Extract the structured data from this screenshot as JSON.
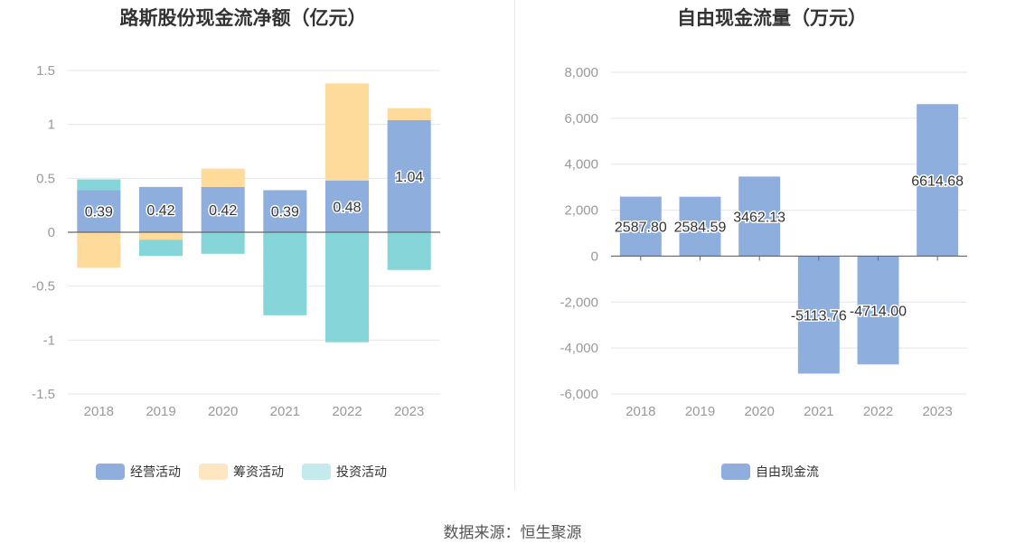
{
  "chart_data": [
    {
      "type": "bar",
      "stacked": true,
      "title": "路斯股份现金流净额（亿元）",
      "categories": [
        "2018",
        "2019",
        "2020",
        "2021",
        "2022",
        "2023"
      ],
      "ylim": [
        -1.5,
        1.5
      ],
      "yticks": [
        1.5,
        1,
        0.5,
        0,
        -0.5,
        -1,
        -1.5
      ],
      "ytick_labels": [
        "1.5",
        "1",
        "0.5",
        "0",
        "-0.5",
        "-1",
        "-1.5"
      ],
      "grid": true,
      "legend": "bottom",
      "series": [
        {
          "name": "经营活动",
          "color": "#8eaedd",
          "values": [
            0.39,
            0.42,
            0.42,
            0.39,
            0.48,
            1.04
          ],
          "labels": [
            "0.39",
            "0.42",
            "0.42",
            "0.39",
            "0.48",
            "1.04"
          ]
        },
        {
          "name": "筹资活动",
          "color": "#fedb9b",
          "values": [
            -0.33,
            -0.07,
            0.17,
            0.0,
            0.9,
            0.11
          ]
        },
        {
          "name": "投资活动",
          "color": "#86d5d9",
          "values": [
            0.1,
            -0.15,
            -0.2,
            -0.77,
            -1.02,
            -0.35
          ]
        }
      ]
    },
    {
      "type": "bar",
      "title": "自由现金流量（万元）",
      "categories": [
        "2018",
        "2019",
        "2020",
        "2021",
        "2022",
        "2023"
      ],
      "ylim": [
        -6000,
        8000
      ],
      "yticks": [
        8000,
        6000,
        4000,
        2000,
        0,
        -2000,
        -4000,
        -6000
      ],
      "ytick_labels": [
        "8,000",
        "6,000",
        "4,000",
        "2,000",
        "0",
        "-2,000",
        "-4,000",
        "-6,000"
      ],
      "grid": true,
      "legend": "bottom",
      "series": [
        {
          "name": "自由现金流",
          "color": "#8eaedd",
          "values": [
            2587.8,
            2584.59,
            3462.13,
            -5113.76,
            -4714.0,
            6614.68
          ],
          "labels": [
            "2587.80",
            "2584.59",
            "3462.13",
            "-5113.76",
            "-4714.00",
            "6614.68"
          ]
        }
      ]
    }
  ],
  "legend_swatches": {
    "经营活动": "#8eaedd",
    "筹资活动": "#fde6c0",
    "投资活动": "#c3eaec",
    "自由现金流": "#8eaedd"
  },
  "source": "数据来源：恒生聚源"
}
